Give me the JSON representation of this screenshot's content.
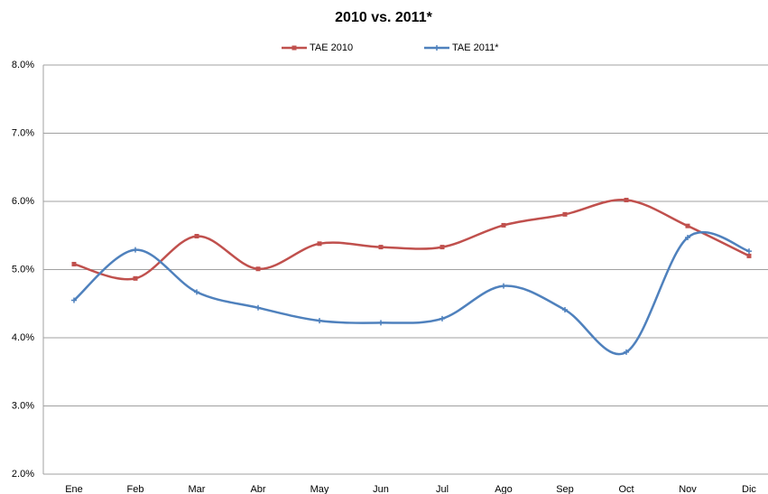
{
  "chart_data": {
    "type": "line",
    "title": "2010 vs. 2011*",
    "categories": [
      "Ene",
      "Feb",
      "Mar",
      "Abr",
      "May",
      "Jun",
      "Jul",
      "Ago",
      "Sep",
      "Oct",
      "Nov",
      "Dic"
    ],
    "series": [
      {
        "name": "TAE 2010",
        "color": "#c0504d",
        "values": [
          5.08,
          4.87,
          5.49,
          5.01,
          5.38,
          5.33,
          5.33,
          5.65,
          5.81,
          6.02,
          5.64,
          5.2
        ]
      },
      {
        "name": "TAE 2011*",
        "color": "#4f81bd",
        "values": [
          4.55,
          5.29,
          4.67,
          4.44,
          4.25,
          4.22,
          4.28,
          4.76,
          4.41,
          3.79,
          5.47,
          5.27
        ]
      }
    ],
    "ylim": [
      2,
      8
    ],
    "yticks": [
      {
        "value": 2,
        "label": "2.0%"
      },
      {
        "value": 3,
        "label": "3.0%"
      },
      {
        "value": 4,
        "label": "4.0%"
      },
      {
        "value": 5,
        "label": "5.0%"
      },
      {
        "value": 6,
        "label": "6.0%"
      },
      {
        "value": 7,
        "label": "7.0%"
      },
      {
        "value": 8,
        "label": "8.0%"
      }
    ],
    "grid": true,
    "smooth": true,
    "legend": "top"
  }
}
